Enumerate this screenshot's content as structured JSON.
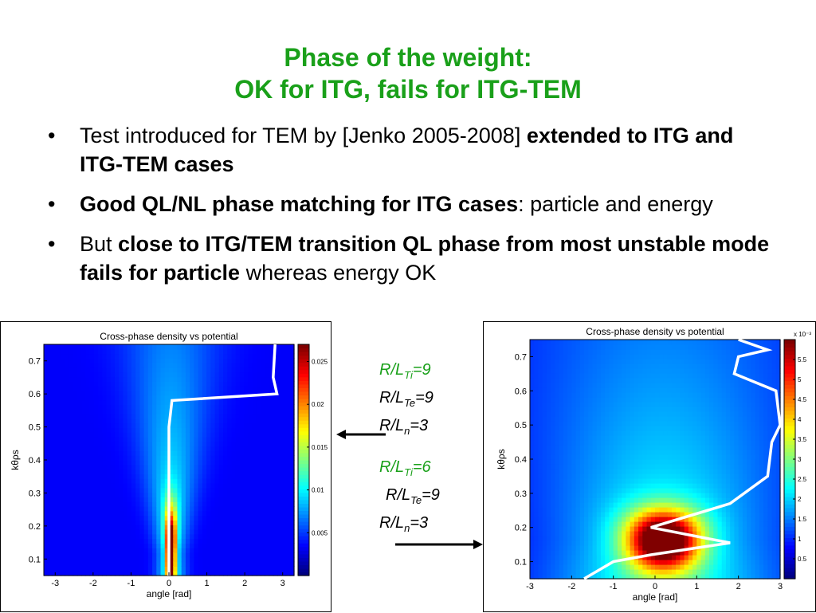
{
  "slide": {
    "title_line1": "Phase of the weight:",
    "title_line2": "OK for ITG, fails for ITG-TEM",
    "bullets": [
      {
        "marker": "•",
        "parts": [
          {
            "text": "Test introduced for TEM by [Jenko 2005-2008] ",
            "bold": false
          },
          {
            "text": "extended to ITG and ITG-TEM cases",
            "bold": true
          }
        ]
      },
      {
        "marker": "•",
        "parts": [
          {
            "text": "Good QL/NL phase matching for ITG cases",
            "bold": true
          },
          {
            "text": ": particle and energy",
            "bold": false
          }
        ]
      },
      {
        "marker": "•",
        "parts": [
          {
            "text": "But ",
            "bold": false
          },
          {
            "text": "close to ITG/TEM transition QL phase from most unstable mode fails for particle",
            "bold": true
          },
          {
            "text": " whereas energy OK",
            "bold": false
          }
        ]
      }
    ],
    "params_top": {
      "rl_ti_base": "R/L",
      "rl_ti_sub": "Ti",
      "rl_ti_val": "=9",
      "rl_te_base": "R/L",
      "rl_te_sub": "Te",
      "rl_te_val": "=9",
      "rl_n_base": "R/L",
      "rl_n_sub": "n",
      "rl_n_val": "=3"
    },
    "params_bottom": {
      "rl_ti_base": "R/L",
      "rl_ti_sub": "Ti",
      "rl_ti_val": "=6",
      "rl_te_base": "R/L",
      "rl_te_sub": "Te",
      "rl_te_val": "=9",
      "rl_n_base": "R/L",
      "rl_n_sub": "n",
      "rl_n_val": "=3"
    },
    "colors": {
      "title": "#1aa01a",
      "params": "#1aa01a",
      "arrow": "#000000"
    }
  },
  "chart_data": [
    {
      "type": "heatmap",
      "title": "Cross-phase density vs potential",
      "xlabel": "angle [rad]",
      "ylabel": "kθρs",
      "xlim": [
        -3.3,
        3.3
      ],
      "ylim": [
        0.05,
        0.75
      ],
      "xticks": [
        -3,
        -2,
        -1,
        0,
        1,
        2,
        3
      ],
      "yticks": [
        0.1,
        0.2,
        0.3,
        0.4,
        0.5,
        0.6,
        0.7
      ],
      "colorbar": {
        "min": 0,
        "max": 0.027,
        "ticks": [
          0.005,
          0.01,
          0.015,
          0.02,
          0.025
        ],
        "exponent": ""
      },
      "peak": {
        "x": 0.05,
        "y": 0.12
      },
      "spread": {
        "sx_base": 0.08,
        "sx_slope": 0.35,
        "sy": 0.09
      },
      "ql_line": {
        "x": [
          0,
          0,
          0.08,
          2.85,
          2.75,
          2.8
        ],
        "y": [
          0.05,
          0.5,
          0.58,
          0.6,
          0.65,
          0.75
        ]
      }
    },
    {
      "type": "heatmap",
      "title": "Cross-phase density vs potential",
      "xlabel": "angle [rad]",
      "ylabel": "kθρs",
      "xlim": [
        -3.0,
        3.0
      ],
      "ylim": [
        0.05,
        0.75
      ],
      "xticks": [
        -3,
        -2,
        -1,
        0,
        1,
        2,
        3
      ],
      "yticks": [
        0.1,
        0.2,
        0.3,
        0.4,
        0.5,
        0.6,
        0.7
      ],
      "colorbar": {
        "min": 0,
        "max": 0.006,
        "ticks": [
          0.5,
          1,
          1.5,
          2,
          2.5,
          3,
          3.5,
          4,
          4.5,
          5,
          5.5
        ],
        "exponent": "x 10⁻³"
      },
      "peak": {
        "x": 0.2,
        "y": 0.165
      },
      "spread": {
        "sx_base": 0.6,
        "sx_slope": 0.4,
        "sy": 0.06
      },
      "ql_line": {
        "x": [
          -1.7,
          -1.0,
          -0.1,
          1.8,
          -0.1,
          1.8,
          2.7,
          2.8,
          3.0,
          2.9,
          1.9,
          2.0,
          2.7,
          2.0
        ],
        "y": [
          0.05,
          0.1,
          0.12,
          0.155,
          0.2,
          0.27,
          0.35,
          0.45,
          0.5,
          0.6,
          0.65,
          0.7,
          0.72,
          0.75
        ]
      }
    }
  ]
}
